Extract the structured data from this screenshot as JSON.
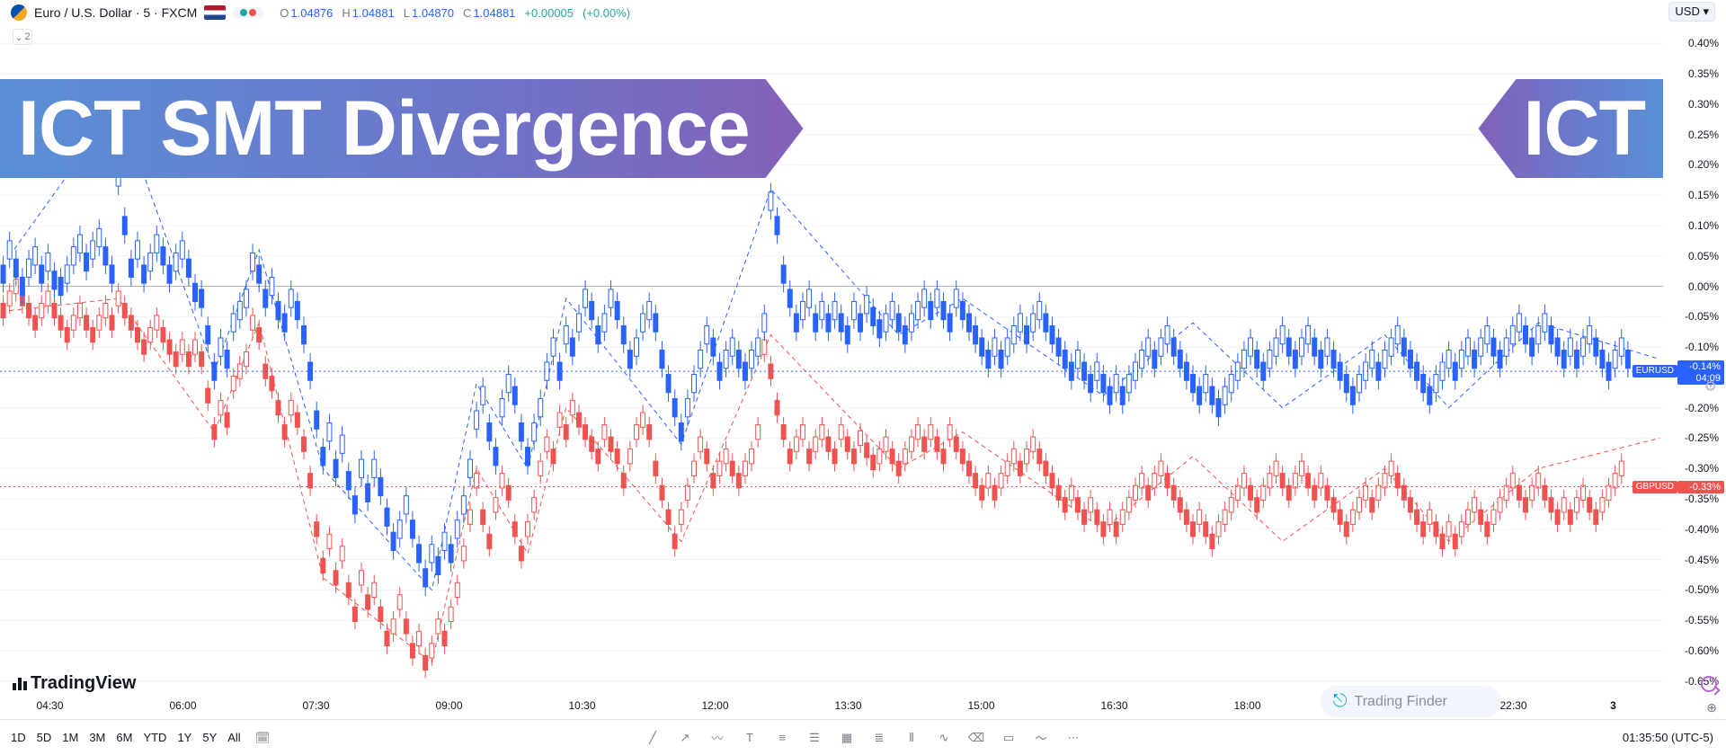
{
  "header": {
    "symbol_name": "Euro / U.S. Dollar · 5 · FXCM",
    "ohlc": {
      "o": "1.04876",
      "h": "1.04881",
      "l": "1.04870",
      "c": "1.04881"
    },
    "change_abs": "+0.00005",
    "change_pct": "(+0.00%)",
    "currency": "USD",
    "indicator_count": "2"
  },
  "banner_left": "ICT SMT Divergence",
  "banner_right": "ICT",
  "tv_logo": "TradingView",
  "tf_logo": "Trading Finder",
  "clock": "01:35:50 (UTC-5)",
  "ranges": [
    "1D",
    "5D",
    "1M",
    "3M",
    "6M",
    "YTD",
    "1Y",
    "5Y",
    "All"
  ],
  "x_ticks": [
    {
      "pct": 3,
      "label": "04:30"
    },
    {
      "pct": 11,
      "label": "06:00"
    },
    {
      "pct": 19,
      "label": "07:30"
    },
    {
      "pct": 27,
      "label": "09:00"
    },
    {
      "pct": 35,
      "label": "10:30"
    },
    {
      "pct": 43,
      "label": "12:00"
    },
    {
      "pct": 51,
      "label": "13:30"
    },
    {
      "pct": 59,
      "label": "15:00"
    },
    {
      "pct": 67,
      "label": "16:30"
    },
    {
      "pct": 75,
      "label": "18:00"
    },
    {
      "pct": 91,
      "label": "22:30"
    },
    {
      "pct": 97,
      "label": "3",
      "bold": true
    }
  ],
  "y_axis": {
    "min": -0.68,
    "max": 0.43,
    "ticks": [
      -0.65,
      -0.6,
      -0.55,
      -0.5,
      -0.45,
      -0.4,
      -0.35,
      -0.3,
      -0.25,
      -0.2,
      -0.15,
      -0.1,
      -0.05,
      0.0,
      0.05,
      0.1,
      0.15,
      0.2,
      0.25,
      0.3,
      0.35,
      0.4
    ]
  },
  "price_tags": {
    "eur": {
      "symbol": "EURUSD",
      "line1": "-0.14%",
      "line2": "04:09",
      "y": -0.14
    },
    "gbp": {
      "symbol": "GBPUSD",
      "line1": "-0.33%",
      "y": -0.33
    }
  },
  "colors": {
    "blue": "#2962ff",
    "blue_wick": "#2962ff",
    "red": "#ef5350",
    "red_wick": "#ef5350",
    "grid": "#f0f3fa",
    "zero": "#b2b5be",
    "dash_blue": "#2962ff",
    "dash_red": "#ef5350"
  },
  "chart": {
    "n_bars": 260,
    "zero_line": 0.0,
    "series_eur_mid": [
      0.02,
      0.06,
      0.03,
      0.0,
      0.03,
      0.05,
      0.02,
      0.04,
      0.01,
      0.0,
      0.02,
      0.05,
      0.07,
      0.04,
      0.06,
      0.08,
      0.05,
      0.02,
      0.18,
      0.1,
      0.03,
      0.06,
      0.02,
      0.04,
      0.07,
      0.05,
      0.02,
      0.04,
      0.06,
      0.03,
      -0.01,
      -0.02,
      -0.08,
      -0.14,
      -0.1,
      -0.12,
      -0.06,
      -0.04,
      -0.02,
      0.04,
      0.02,
      -0.02,
      0.0,
      -0.04,
      -0.06,
      -0.02,
      -0.04,
      -0.08,
      -0.14,
      -0.22,
      -0.28,
      -0.24,
      -0.3,
      -0.26,
      -0.32,
      -0.36,
      -0.3,
      -0.34,
      -0.3,
      -0.33,
      -0.38,
      -0.42,
      -0.4,
      -0.36,
      -0.4,
      -0.44,
      -0.48,
      -0.44,
      -0.46,
      -0.42,
      -0.44,
      -0.4,
      -0.36,
      -0.3,
      -0.22,
      -0.18,
      -0.24,
      -0.28,
      -0.2,
      -0.16,
      -0.18,
      -0.24,
      -0.28,
      -0.24,
      -0.2,
      -0.14,
      -0.1,
      -0.14,
      -0.08,
      -0.1,
      -0.06,
      -0.02,
      -0.04,
      -0.08,
      -0.06,
      -0.02,
      -0.04,
      -0.08,
      -0.12,
      -0.1,
      -0.06,
      -0.04,
      -0.06,
      -0.12,
      -0.16,
      -0.2,
      -0.24,
      -0.2,
      -0.16,
      -0.12,
      -0.08,
      -0.1,
      -0.14,
      -0.12,
      -0.1,
      -0.12,
      -0.14,
      -0.12,
      -0.1,
      -0.06,
      0.14,
      0.1,
      0.02,
      -0.02,
      -0.06,
      -0.04,
      -0.02,
      -0.06,
      -0.04,
      -0.06,
      -0.04,
      -0.06,
      -0.08,
      -0.04,
      -0.06,
      -0.03,
      -0.05,
      -0.07,
      -0.06,
      -0.04,
      -0.06,
      -0.08,
      -0.06,
      -0.04,
      -0.02,
      -0.04,
      -0.02,
      -0.04,
      -0.06,
      -0.02,
      -0.04,
      -0.06,
      -0.08,
      -0.1,
      -0.12,
      -0.1,
      -0.12,
      -0.1,
      -0.08,
      -0.06,
      -0.08,
      -0.06,
      -0.04,
      -0.06,
      -0.08,
      -0.1,
      -0.12,
      -0.14,
      -0.12,
      -0.14,
      -0.16,
      -0.14,
      -0.16,
      -0.18,
      -0.16,
      -0.18,
      -0.16,
      -0.14,
      -0.12,
      -0.1,
      -0.12,
      -0.1,
      -0.08,
      -0.1,
      -0.12,
      -0.14,
      -0.16,
      -0.18,
      -0.16,
      -0.18,
      -0.2,
      -0.18,
      -0.16,
      -0.14,
      -0.12,
      -0.1,
      -0.12,
      -0.14,
      -0.12,
      -0.1,
      -0.08,
      -0.1,
      -0.12,
      -0.1,
      -0.08,
      -0.1,
      -0.12,
      -0.1,
      -0.12,
      -0.14,
      -0.16,
      -0.18,
      -0.16,
      -0.14,
      -0.12,
      -0.14,
      -0.12,
      -0.1,
      -0.08,
      -0.1,
      -0.12,
      -0.14,
      -0.16,
      -0.18,
      -0.16,
      -0.14,
      -0.12,
      -0.14,
      -0.12,
      -0.1,
      -0.12,
      -0.1,
      -0.08,
      -0.1,
      -0.12,
      -0.1,
      -0.08,
      -0.06,
      -0.08,
      -0.1,
      -0.08,
      -0.06,
      -0.08,
      -0.1,
      -0.12,
      -0.1,
      -0.12,
      -0.1,
      -0.08,
      -0.1,
      -0.12,
      -0.14,
      -0.12,
      -0.1,
      -0.12
    ],
    "series_gbp_mid": [
      -0.04,
      -0.02,
      0.0,
      -0.02,
      -0.04,
      -0.06,
      -0.04,
      -0.02,
      -0.04,
      -0.06,
      -0.08,
      -0.06,
      -0.04,
      -0.06,
      -0.08,
      -0.06,
      -0.04,
      -0.06,
      -0.02,
      -0.04,
      -0.06,
      -0.08,
      -0.1,
      -0.08,
      -0.06,
      -0.08,
      -0.1,
      -0.12,
      -0.1,
      -0.12,
      -0.1,
      -0.12,
      -0.18,
      -0.24,
      -0.2,
      -0.22,
      -0.16,
      -0.14,
      -0.12,
      -0.06,
      -0.08,
      -0.14,
      -0.16,
      -0.2,
      -0.24,
      -0.2,
      -0.22,
      -0.26,
      -0.32,
      -0.4,
      -0.46,
      -0.42,
      -0.48,
      -0.44,
      -0.5,
      -0.54,
      -0.48,
      -0.52,
      -0.5,
      -0.54,
      -0.58,
      -0.56,
      -0.52,
      -0.56,
      -0.6,
      -0.58,
      -0.62,
      -0.6,
      -0.56,
      -0.58,
      -0.54,
      -0.5,
      -0.44,
      -0.38,
      -0.32,
      -0.38,
      -0.42,
      -0.36,
      -0.32,
      -0.34,
      -0.4,
      -0.44,
      -0.4,
      -0.36,
      -0.3,
      -0.26,
      -0.28,
      -0.22,
      -0.24,
      -0.2,
      -0.22,
      -0.24,
      -0.26,
      -0.28,
      -0.24,
      -0.26,
      -0.28,
      -0.32,
      -0.28,
      -0.24,
      -0.22,
      -0.24,
      -0.3,
      -0.34,
      -0.38,
      -0.42,
      -0.38,
      -0.34,
      -0.3,
      -0.26,
      -0.28,
      -0.32,
      -0.3,
      -0.28,
      -0.3,
      -0.32,
      -0.3,
      -0.28,
      -0.24,
      -0.1,
      -0.14,
      -0.2,
      -0.24,
      -0.28,
      -0.26,
      -0.24,
      -0.28,
      -0.26,
      -0.24,
      -0.26,
      -0.28,
      -0.24,
      -0.26,
      -0.28,
      -0.25,
      -0.27,
      -0.29,
      -0.28,
      -0.26,
      -0.28,
      -0.3,
      -0.28,
      -0.26,
      -0.24,
      -0.26,
      -0.24,
      -0.26,
      -0.28,
      -0.24,
      -0.26,
      -0.28,
      -0.3,
      -0.32,
      -0.34,
      -0.32,
      -0.34,
      -0.32,
      -0.3,
      -0.28,
      -0.3,
      -0.28,
      -0.26,
      -0.28,
      -0.3,
      -0.32,
      -0.34,
      -0.36,
      -0.34,
      -0.36,
      -0.38,
      -0.36,
      -0.38,
      -0.4,
      -0.38,
      -0.4,
      -0.38,
      -0.36,
      -0.34,
      -0.32,
      -0.34,
      -0.32,
      -0.3,
      -0.32,
      -0.34,
      -0.36,
      -0.38,
      -0.4,
      -0.38,
      -0.4,
      -0.42,
      -0.4,
      -0.38,
      -0.36,
      -0.34,
      -0.32,
      -0.34,
      -0.36,
      -0.34,
      -0.32,
      -0.3,
      -0.32,
      -0.34,
      -0.32,
      -0.3,
      -0.32,
      -0.34,
      -0.32,
      -0.34,
      -0.36,
      -0.38,
      -0.4,
      -0.38,
      -0.36,
      -0.34,
      -0.36,
      -0.34,
      -0.32,
      -0.3,
      -0.32,
      -0.34,
      -0.36,
      -0.38,
      -0.4,
      -0.38,
      -0.4,
      -0.42,
      -0.4,
      -0.42,
      -0.4,
      -0.38,
      -0.36,
      -0.38,
      -0.4,
      -0.38,
      -0.36,
      -0.34,
      -0.32,
      -0.34,
      -0.36,
      -0.34,
      -0.32,
      -0.34,
      -0.36,
      -0.38,
      -0.36,
      -0.38,
      -0.36,
      -0.34,
      -0.36,
      -0.38,
      -0.36,
      -0.34,
      -0.32,
      -0.3
    ],
    "eur_body_half": 0.015,
    "eur_wick_half": 0.03,
    "gbp_body_half": 0.012,
    "gbp_wick_half": 0.025,
    "zigzag_blue": [
      [
        1,
        0.05
      ],
      [
        18,
        0.3
      ],
      [
        33,
        -0.14
      ],
      [
        40,
        0.06
      ],
      [
        50,
        -0.3
      ],
      [
        67,
        -0.5
      ],
      [
        74,
        -0.16
      ],
      [
        82,
        -0.3
      ],
      [
        88,
        -0.02
      ],
      [
        106,
        -0.26
      ],
      [
        120,
        0.16
      ],
      [
        140,
        -0.08
      ],
      [
        150,
        -0.02
      ],
      [
        172,
        -0.18
      ],
      [
        186,
        -0.06
      ],
      [
        200,
        -0.2
      ],
      [
        216,
        -0.08
      ],
      [
        226,
        -0.2
      ],
      [
        240,
        -0.06
      ],
      [
        259,
        -0.12
      ]
    ],
    "zigzag_red": [
      [
        1,
        -0.04
      ],
      [
        18,
        -0.02
      ],
      [
        33,
        -0.24
      ],
      [
        40,
        -0.06
      ],
      [
        50,
        -0.48
      ],
      [
        67,
        -0.62
      ],
      [
        74,
        -0.3
      ],
      [
        82,
        -0.44
      ],
      [
        88,
        -0.2
      ],
      [
        106,
        -0.42
      ],
      [
        120,
        -0.08
      ],
      [
        140,
        -0.3
      ],
      [
        150,
        -0.24
      ],
      [
        172,
        -0.4
      ],
      [
        186,
        -0.28
      ],
      [
        200,
        -0.42
      ],
      [
        216,
        -0.3
      ],
      [
        226,
        -0.42
      ],
      [
        240,
        -0.3
      ],
      [
        259,
        -0.25
      ]
    ]
  },
  "tool_icons": [
    "line",
    "trend",
    "brush",
    "text",
    "hline",
    "levels",
    "grid",
    "fib",
    "pattern",
    "curve",
    "eraser",
    "rect",
    "wave",
    "more"
  ]
}
